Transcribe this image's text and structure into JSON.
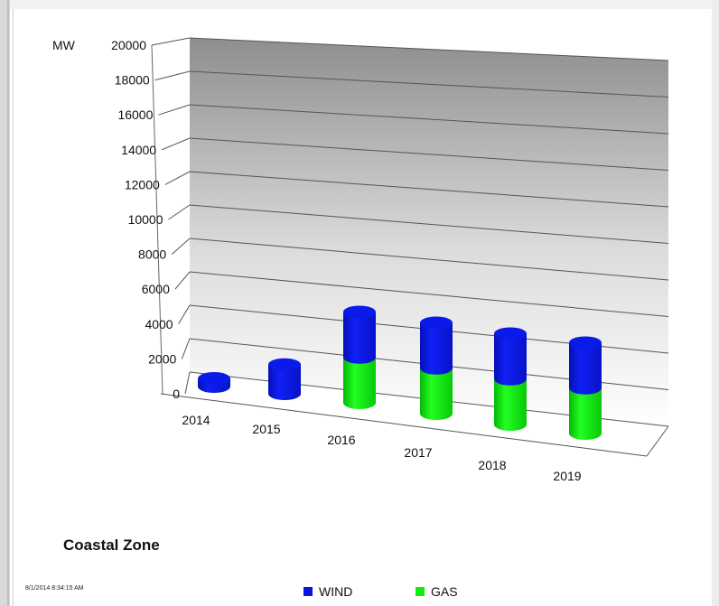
{
  "chart_data": {
    "type": "bar",
    "subtype": "3d-stacked-cylinder",
    "title": "Coastal Zone",
    "ylabel": "MW",
    "ylim": [
      0,
      20000
    ],
    "yticks": [
      "0",
      "2000",
      "4000",
      "6000",
      "8000",
      "10000",
      "12000",
      "14000",
      "16000",
      "18000",
      "20000"
    ],
    "categories": [
      "2014",
      "2015",
      "2016",
      "2017",
      "2018",
      "2019"
    ],
    "series": [
      {
        "name": "GAS",
        "color": "#10ee10",
        "values": [
          0,
          0,
          2800,
          2800,
          2800,
          2800
        ]
      },
      {
        "name": "WIND",
        "color": "#0a14e0",
        "values": [
          500,
          1800,
          2800,
          2800,
          2800,
          2800
        ]
      }
    ],
    "grid": true,
    "legend": "bottom"
  },
  "timestamp": "8/1/2014 8:34:15 AM"
}
